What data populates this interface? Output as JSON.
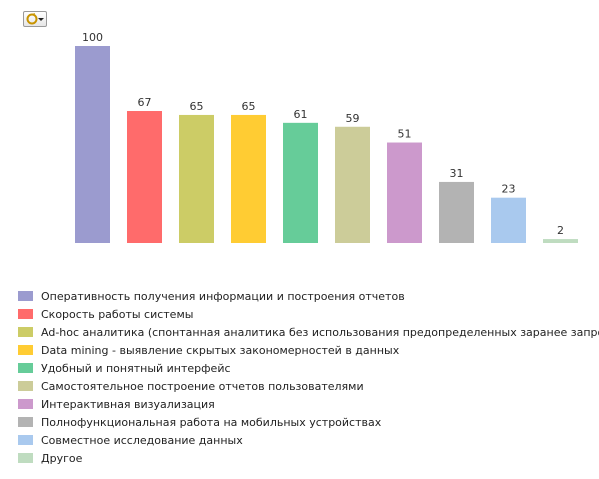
{
  "toolbar": {
    "menu_icon": "chart-menu-icon"
  },
  "chart_data": {
    "type": "bar",
    "categories": [
      "Оперативность получения информации и построения отчетов",
      "Скорость работы системы",
      "Ad-hoc аналитика (спонтанная аналитика без использования предопределенных заранее запросов)",
      "Data mining - выявление скрытых закономерностей в данных",
      "Удобный и понятный интерфейс",
      "Самостоятельное построение отчетов пользователями",
      "Интерактивная визуализация",
      "Полнофункциональная работа на мобильных устройствах",
      "Совместное исследование данных",
      "Другое"
    ],
    "values": [
      100,
      67,
      65,
      65,
      61,
      59,
      51,
      31,
      23,
      2
    ],
    "colors": [
      "#9b9bcf",
      "#ff6b6b",
      "#cccc66",
      "#ffcc33",
      "#66cc99",
      "#cccc99",
      "#cc99cc",
      "#b3b3b3",
      "#a9c9ee",
      "#bfdcc0"
    ],
    "data_labels": [
      "100",
      "67",
      "65",
      "65",
      "61",
      "59",
      "51",
      "31",
      "23",
      "2"
    ],
    "ylim": [
      0,
      100
    ],
    "grid": false,
    "legend": "bottom"
  }
}
